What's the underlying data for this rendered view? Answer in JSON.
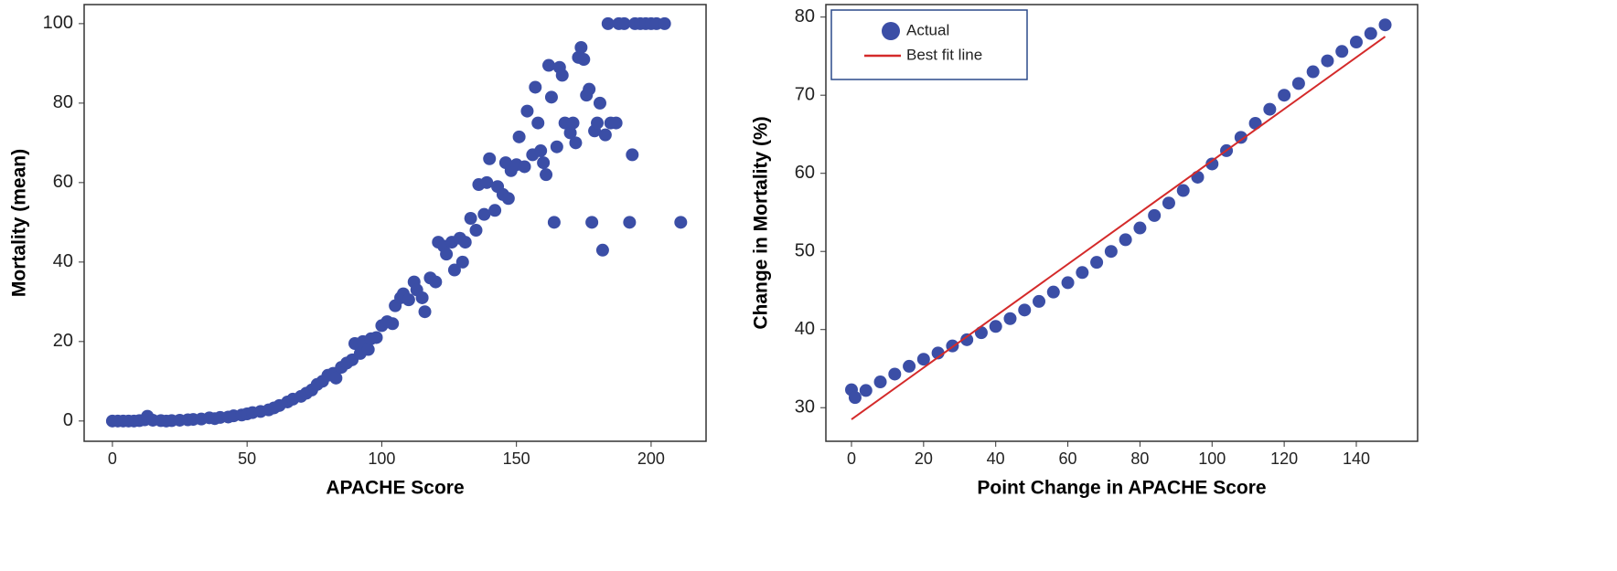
{
  "chart_data": [
    {
      "type": "scatter",
      "x_label": "APACHE Score",
      "y_label": "Mortality (mean)",
      "xlim": [
        -10.5,
        220.4
      ],
      "ylim": [
        -5.1,
        104.8
      ],
      "xticks": [
        0,
        50,
        100,
        150,
        200
      ],
      "yticks": [
        0,
        20,
        40,
        60,
        80,
        100
      ],
      "color": "#3b4ea6",
      "x": [
        0,
        2,
        4,
        6,
        8,
        10,
        12,
        13,
        15,
        18,
        20,
        22,
        25,
        28,
        30,
        33,
        36,
        38,
        40,
        43,
        45,
        48,
        50,
        52,
        55,
        58,
        60,
        62,
        65,
        67,
        70,
        72,
        74,
        76,
        78,
        80,
        82,
        83,
        85,
        87,
        89,
        90,
        92,
        93,
        95,
        96,
        98,
        100,
        102,
        104,
        105,
        107,
        108,
        110,
        112,
        113,
        115,
        116,
        118,
        120,
        121,
        123,
        124,
        126,
        127,
        129,
        130,
        131,
        133,
        135,
        136,
        138,
        139,
        140,
        142,
        143,
        145,
        146,
        147,
        148,
        150,
        151,
        153,
        154,
        156,
        157,
        158,
        159,
        160,
        161,
        162,
        163,
        164,
        165,
        166,
        167,
        168,
        170,
        171,
        172,
        173,
        174,
        175,
        176,
        177,
        178,
        179,
        180,
        181,
        182,
        183,
        184,
        185,
        187,
        188,
        190,
        192,
        193,
        194,
        196,
        198,
        200,
        202,
        205,
        211
      ],
      "values": [
        0,
        0,
        0,
        0,
        0,
        0.1,
        0.3,
        1.2,
        0.2,
        0.1,
        0,
        0.1,
        0.2,
        0.3,
        0.4,
        0.5,
        0.8,
        0.6,
        0.9,
        1,
        1.3,
        1.5,
        1.8,
        2.1,
        2.4,
        2.8,
        3.3,
        3.9,
        4.8,
        5.5,
        6.2,
        7,
        7.8,
        9.2,
        10,
        11.5,
        12,
        10.8,
        13.5,
        14.6,
        15.4,
        19.5,
        17,
        20,
        18,
        20.7,
        21,
        24,
        25,
        24.5,
        29,
        31,
        32,
        30.5,
        35,
        33,
        31,
        27.5,
        36,
        35,
        45,
        44,
        42,
        45,
        38,
        46,
        40,
        45,
        51,
        48,
        59.5,
        52,
        60,
        66,
        53,
        59,
        57,
        65,
        56,
        63,
        64.5,
        71.5,
        64,
        78,
        67,
        84,
        75,
        68,
        65,
        62,
        89.5,
        81.5,
        50,
        69,
        89,
        87,
        75,
        72.5,
        75,
        70,
        91.5,
        94,
        91,
        82,
        83.5,
        50,
        73,
        75,
        80,
        43,
        72,
        100,
        75,
        75,
        100,
        100,
        50,
        67,
        100,
        100,
        100,
        100,
        100,
        100,
        50
      ]
    },
    {
      "type": "scatter",
      "x_label": "Point Change in APACHE Score",
      "y_label": "Change in Mortality (%)",
      "xlim": [
        -7.1,
        157
      ],
      "ylim": [
        25.7,
        81.6
      ],
      "xticks": [
        0,
        20,
        40,
        60,
        80,
        100,
        120,
        140
      ],
      "yticks": [
        30,
        40,
        50,
        60,
        70,
        80
      ],
      "legend": "upper left",
      "series": [
        {
          "name": "Actual",
          "style": "marker",
          "color": "#3b4ea6",
          "x": [
            0,
            1,
            4,
            8,
            12,
            16,
            20,
            24,
            28,
            32,
            36,
            40,
            44,
            48,
            52,
            56,
            60,
            64,
            68,
            72,
            76,
            80,
            84,
            88,
            92,
            96,
            100,
            104,
            108,
            112,
            116,
            120,
            124,
            128,
            132,
            136,
            140,
            144,
            148
          ],
          "values": [
            32.3,
            31.3,
            32.2,
            33.3,
            34.3,
            35.3,
            36.2,
            37.0,
            37.9,
            38.7,
            39.6,
            40.4,
            41.4,
            42.5,
            43.6,
            44.8,
            46,
            47.3,
            48.6,
            50,
            51.5,
            53,
            54.6,
            56.2,
            57.8,
            59.5,
            61.2,
            62.9,
            64.6,
            66.4,
            68.2,
            70,
            71.5,
            73,
            74.4,
            75.6,
            76.8,
            77.9,
            79
          ]
        },
        {
          "name": "Best fit line",
          "style": "line",
          "color": "#d42a2a",
          "x": [
            0,
            148
          ],
          "values": [
            28.5,
            77.5
          ]
        }
      ]
    }
  ]
}
